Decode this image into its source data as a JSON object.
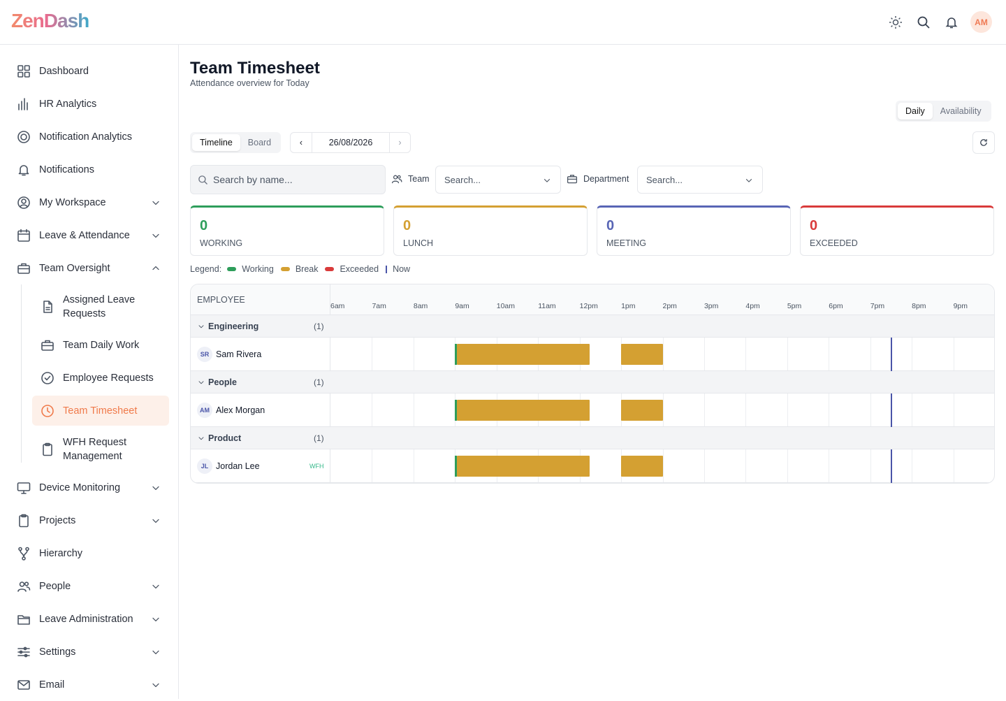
{
  "header": {
    "logo": "ZenDash",
    "avatar": "AM"
  },
  "sidebar": {
    "items": [
      {
        "label": "Dashboard",
        "icon": "grid"
      },
      {
        "label": "HR Analytics",
        "icon": "bars"
      },
      {
        "label": "Notification Analytics",
        "icon": "circle"
      },
      {
        "label": "Notifications",
        "icon": "bell"
      },
      {
        "label": "My Workspace",
        "icon": "user",
        "expandable": true
      },
      {
        "label": "Leave & Attendance",
        "icon": "calendar",
        "expandable": true
      },
      {
        "label": "Team Oversight",
        "icon": "case",
        "expandable": true,
        "expanded": true,
        "children": [
          {
            "label": "Assigned Leave Requests",
            "icon": "doc"
          },
          {
            "label": "Team Daily Work",
            "icon": "case"
          },
          {
            "label": "Employee Requests",
            "icon": "check"
          },
          {
            "label": "Team Timesheet",
            "icon": "clock",
            "active": true
          },
          {
            "label": "WFH Request Management",
            "icon": "clip"
          }
        ]
      },
      {
        "label": "Device Monitoring",
        "icon": "monitor",
        "expandable": true
      },
      {
        "label": "Projects",
        "icon": "clip",
        "expandable": true
      },
      {
        "label": "Hierarchy",
        "icon": "fork"
      },
      {
        "label": "People",
        "icon": "users",
        "expandable": true
      },
      {
        "label": "Leave Administration",
        "icon": "folder",
        "expandable": true
      },
      {
        "label": "Settings",
        "icon": "sliders",
        "expandable": true
      },
      {
        "label": "Email",
        "icon": "mail",
        "expandable": true
      }
    ]
  },
  "page": {
    "title": "Team Timesheet",
    "subtitle": "Attendance overview for Today"
  },
  "view_toggle": {
    "options": [
      "Daily",
      "Availability"
    ],
    "selected": 0
  },
  "mode_toggle": {
    "options": [
      "Timeline",
      "Board"
    ],
    "selected": 0
  },
  "date_nav": {
    "prev": "‹",
    "date": "26/08/2026",
    "next": "›"
  },
  "filters": {
    "search_placeholder": "Search by name...",
    "team_label": "Team",
    "team_placeholder": "Search...",
    "department_label": "Department",
    "department_placeholder": "Search..."
  },
  "stats": [
    {
      "value": 0,
      "label": "WORKING",
      "color": "#2e9e5b"
    },
    {
      "value": 0,
      "label": "LUNCH",
      "color": "#d4a032"
    },
    {
      "value": 0,
      "label": "MEETING",
      "color": "#5865b5"
    },
    {
      "value": 0,
      "label": "EXCEEDED",
      "color": "#d93b3b"
    }
  ],
  "legend": {
    "title": "Legend:",
    "items": [
      {
        "label": "Working",
        "color": "#2e9e5b"
      },
      {
        "label": "Break",
        "color": "#d4a032"
      },
      {
        "label": "Exceeded",
        "color": "#d93b3b"
      },
      {
        "label": "Now",
        "color": "#4a55a8",
        "line": true
      }
    ]
  },
  "timeline": {
    "column_header": "EMPLOYEE",
    "xlim": [
      6,
      22
    ],
    "xticks": [
      {
        "value": 6,
        "label": "6am"
      },
      {
        "value": 7,
        "label": "7am"
      },
      {
        "value": 8,
        "label": "8am"
      },
      {
        "value": 9,
        "label": "9am"
      },
      {
        "value": 10,
        "label": "10am"
      },
      {
        "value": 11,
        "label": "11am"
      },
      {
        "value": 12,
        "label": "12pm"
      },
      {
        "value": 13,
        "label": "1pm"
      },
      {
        "value": 14,
        "label": "2pm"
      },
      {
        "value": 15,
        "label": "3pm"
      },
      {
        "value": 16,
        "label": "4pm"
      },
      {
        "value": 17,
        "label": "5pm"
      },
      {
        "value": 18,
        "label": "6pm"
      },
      {
        "value": 19,
        "label": "7pm"
      },
      {
        "value": 20,
        "label": "8pm"
      },
      {
        "value": 21,
        "label": "9pm"
      }
    ],
    "now": 19.5,
    "now_color": "#4a55a8",
    "groups": [
      {
        "name": "Engineering",
        "count": "(1)",
        "employees": [
          {
            "initials": "SR",
            "name": "Sam Rivera",
            "segments": [
              {
                "start": 9.0,
                "end": 9.05,
                "color": "#2e9e5b"
              },
              {
                "start": 9.05,
                "end": 12.25,
                "color": "#d4a032"
              },
              {
                "start": 13.0,
                "end": 14.0,
                "color": "#d4a032"
              }
            ]
          }
        ]
      },
      {
        "name": "People",
        "count": "(1)",
        "employees": [
          {
            "initials": "AM",
            "name": "Alex Morgan",
            "segments": [
              {
                "start": 9.0,
                "end": 9.05,
                "color": "#2e9e5b"
              },
              {
                "start": 9.05,
                "end": 12.25,
                "color": "#d4a032"
              },
              {
                "start": 13.0,
                "end": 14.0,
                "color": "#d4a032"
              }
            ]
          }
        ]
      },
      {
        "name": "Product",
        "count": "(1)",
        "employees": [
          {
            "initials": "JL",
            "name": "Jordan Lee",
            "tag": "WFH",
            "segments": [
              {
                "start": 9.0,
                "end": 9.05,
                "color": "#2e9e5b"
              },
              {
                "start": 9.05,
                "end": 12.25,
                "color": "#d4a032"
              },
              {
                "start": 13.0,
                "end": 14.0,
                "color": "#d4a032"
              }
            ]
          }
        ]
      }
    ]
  }
}
